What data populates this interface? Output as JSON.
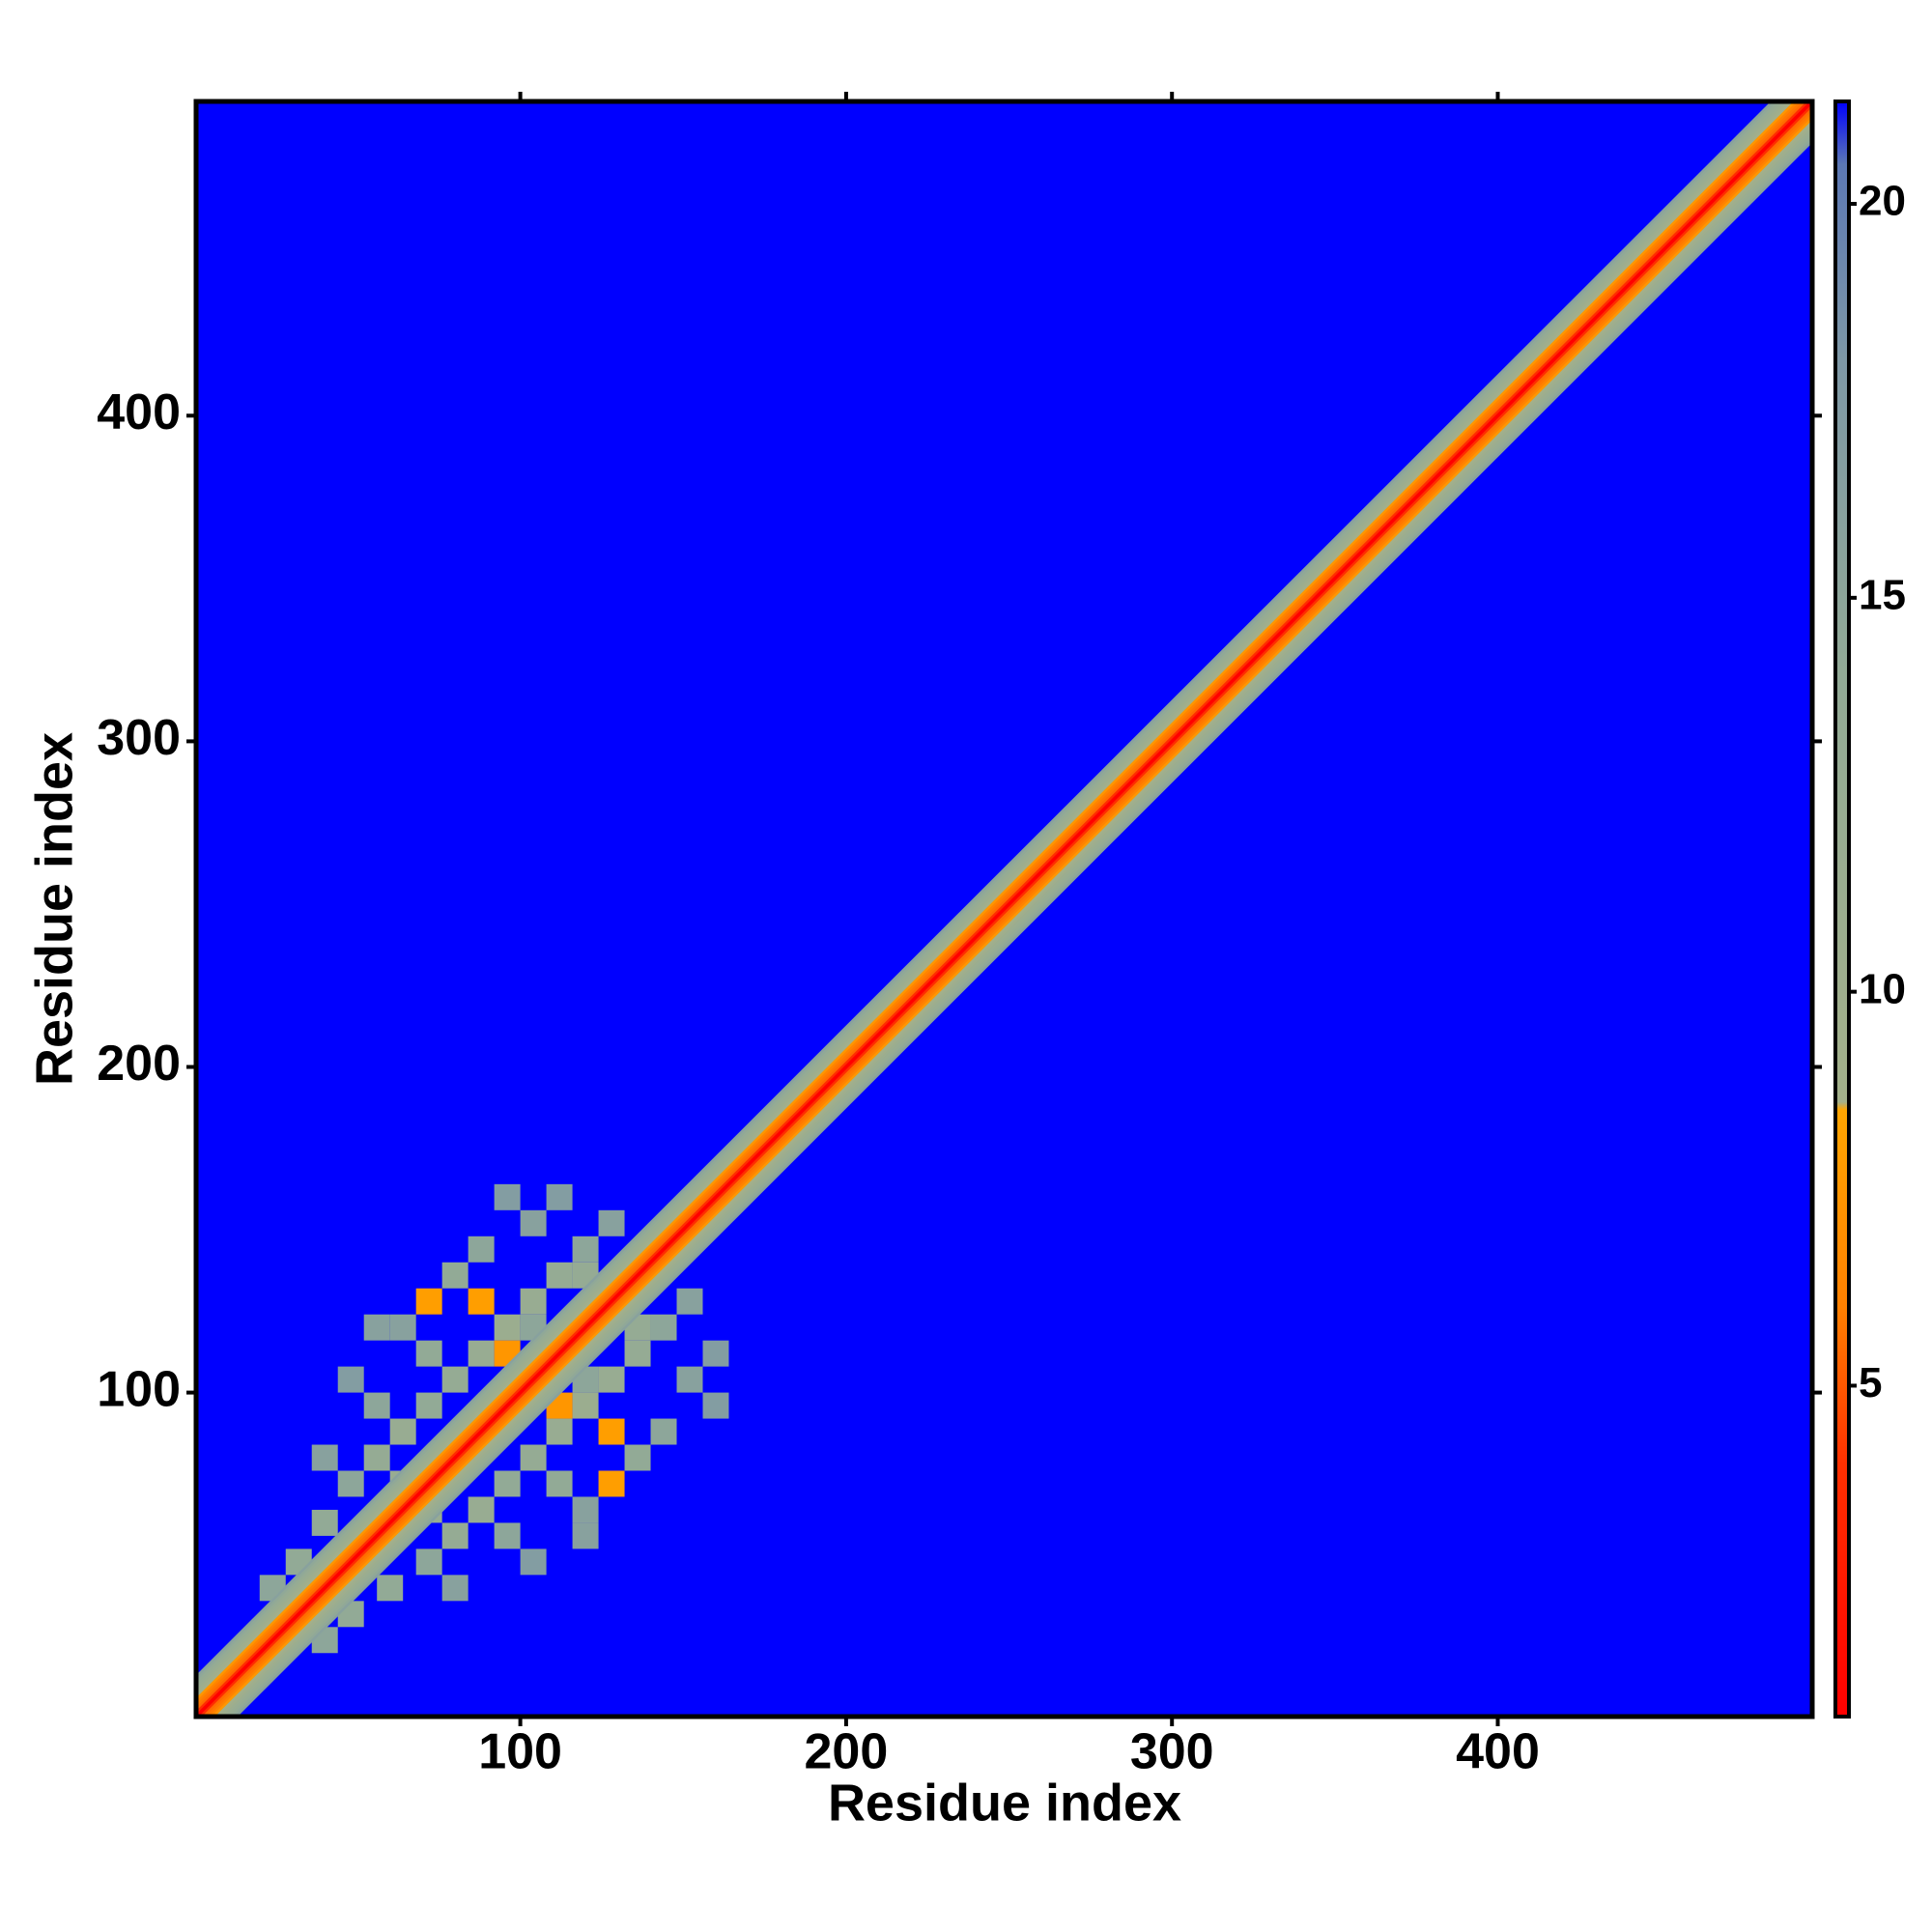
{
  "chart_data": {
    "type": "heatmap",
    "x_label": "Residue index",
    "y_label": "Residue index",
    "xlim": [
      0.5,
      496.5
    ],
    "ylim": [
      0.5,
      496.5
    ],
    "xticks": [
      100,
      200,
      300,
      400
    ],
    "yticks": [
      100,
      200,
      300,
      400
    ],
    "zlim": [
      0.8,
      21.3
    ],
    "zticks": [
      5,
      10,
      15,
      20
    ],
    "colorscale": [
      [
        0.8,
        "#ff0000"
      ],
      [
        4,
        "#ff3000"
      ],
      [
        6,
        "#ff8000"
      ],
      [
        8.5,
        "#ffa500"
      ],
      [
        8.6,
        "#a3b08a"
      ],
      [
        14,
        "#92aa96"
      ],
      [
        18,
        "#7e98a6"
      ],
      [
        20.5,
        "#5c78b4"
      ],
      [
        21.3,
        "#0000ff"
      ]
    ],
    "diagonal": {
      "separation": [
        1,
        2,
        3,
        4,
        5,
        6,
        7,
        8,
        9,
        10,
        11,
        12
      ],
      "values": [
        3.8,
        5.5,
        5.8,
        6.2,
        7.5,
        9,
        10,
        11,
        12,
        13,
        14.5,
        16
      ]
    },
    "cells": {
      "cell_size": 8,
      "x": [
        40,
        48,
        56,
        64,
        72,
        80,
        88,
        96,
        104,
        112,
        120,
        128,
        40,
        56,
        72,
        88,
        104,
        64,
        80,
        96,
        48,
        112,
        88,
        96,
        72,
        56,
        64,
        120,
        104,
        32,
        24
      ],
      "y": [
        60,
        72,
        80,
        88,
        96,
        104,
        112,
        120,
        128,
        136,
        144,
        152,
        80,
        96,
        112,
        144,
        152,
        120,
        136,
        160,
        104,
        160,
        128,
        112,
        128,
        120,
        72,
        136,
        120,
        48,
        40
      ],
      "values": [
        14,
        15,
        13,
        12,
        14,
        13,
        12,
        11,
        12,
        13,
        15,
        16,
        16,
        15,
        14,
        15,
        16,
        16,
        14,
        17,
        17,
        17,
        8,
        7.5,
        8,
        16,
        12,
        13,
        15,
        14,
        15
      ]
    }
  }
}
